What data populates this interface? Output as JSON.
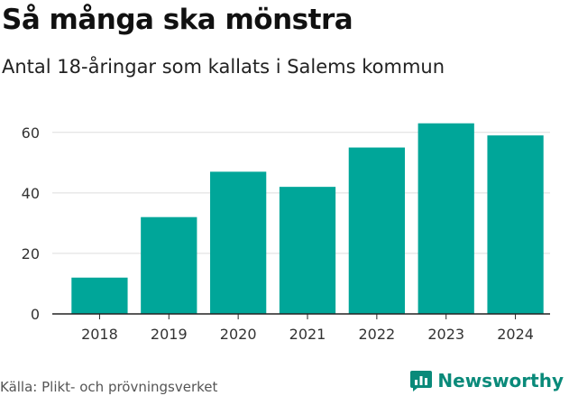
{
  "header": {
    "title": "Så många ska mönstra",
    "subtitle": "Antal 18-åringar som kallats i Salems kommun"
  },
  "footer": {
    "source": "Källa: Plikt- och prövningsverket",
    "brand": "Newsworthy"
  },
  "colors": {
    "bar": "#00a699",
    "grid": "#dddddd",
    "axis": "#222222",
    "brand": "#0a8a7a"
  },
  "chart_data": {
    "type": "bar",
    "title": "Så många ska mönstra",
    "subtitle": "Antal 18-åringar som kallats i Salems kommun",
    "categories": [
      "2018",
      "2019",
      "2020",
      "2021",
      "2022",
      "2023",
      "2024"
    ],
    "values": [
      12,
      32,
      47,
      42,
      55,
      63,
      59
    ],
    "yticks": [
      0,
      20,
      40,
      60
    ],
    "ylim": [
      0,
      65
    ],
    "xlabel": "",
    "ylabel": "",
    "grid": true
  }
}
